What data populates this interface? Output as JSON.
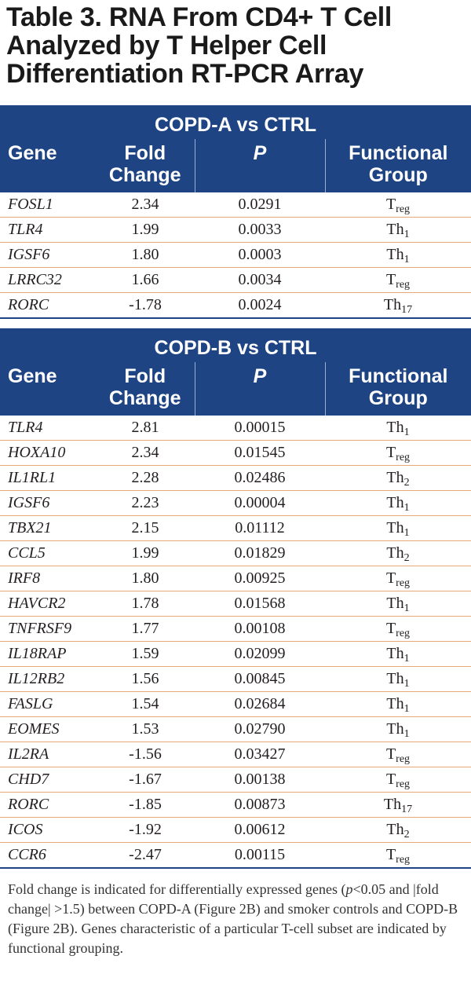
{
  "title": "Table 3. RNA From CD4+ T Cell Analyzed by T Helper Cell Differentiation RT-PCR Array",
  "columns": {
    "gene": "Gene",
    "fold_change": "Fold Change",
    "p": "P",
    "functional_group": "Functional Group"
  },
  "table_a": {
    "group_label": "COPD-A vs CTRL",
    "rows": [
      {
        "gene": "FOSL1",
        "fold": "2.34",
        "p": "0.0291",
        "grp_base": "T",
        "grp_sub": "reg"
      },
      {
        "gene": "TLR4",
        "fold": "1.99",
        "p": "0.0033",
        "grp_base": "Th",
        "grp_sub": "1"
      },
      {
        "gene": "IGSF6",
        "fold": "1.80",
        "p": "0.0003",
        "grp_base": "Th",
        "grp_sub": "1"
      },
      {
        "gene": "LRRC32",
        "fold": "1.66",
        "p": "0.0034",
        "grp_base": "T",
        "grp_sub": "reg"
      },
      {
        "gene": "RORC",
        "fold": "-1.78",
        "p": "0.0024",
        "grp_base": "Th",
        "grp_sub": "17"
      }
    ]
  },
  "table_b": {
    "group_label": "COPD-B vs CTRL",
    "rows": [
      {
        "gene": "TLR4",
        "fold": "2.81",
        "p": "0.00015",
        "grp_base": "Th",
        "grp_sub": "1"
      },
      {
        "gene": "HOXA10",
        "fold": "2.34",
        "p": "0.01545",
        "grp_base": "T",
        "grp_sub": "reg"
      },
      {
        "gene": "IL1RL1",
        "fold": "2.28",
        "p": "0.02486",
        "grp_base": "Th",
        "grp_sub": "2"
      },
      {
        "gene": "IGSF6",
        "fold": "2.23",
        "p": "0.00004",
        "grp_base": "Th",
        "grp_sub": "1"
      },
      {
        "gene": "TBX21",
        "fold": "2.15",
        "p": "0.01112",
        "grp_base": "Th",
        "grp_sub": "1"
      },
      {
        "gene": "CCL5",
        "fold": "1.99",
        "p": "0.01829",
        "grp_base": "Th",
        "grp_sub": "2"
      },
      {
        "gene": "IRF8",
        "fold": "1.80",
        "p": "0.00925",
        "grp_base": "T",
        "grp_sub": "reg"
      },
      {
        "gene": "HAVCR2",
        "fold": "1.78",
        "p": "0.01568",
        "grp_base": "Th",
        "grp_sub": "1"
      },
      {
        "gene": "TNFRSF9",
        "fold": "1.77",
        "p": "0.00108",
        "grp_base": "T",
        "grp_sub": "reg"
      },
      {
        "gene": "IL18RAP",
        "fold": "1.59",
        "p": "0.02099",
        "grp_base": "Th",
        "grp_sub": "1"
      },
      {
        "gene": "IL12RB2",
        "fold": "1.56",
        "p": "0.00845",
        "grp_base": "Th",
        "grp_sub": "1"
      },
      {
        "gene": "FASLG",
        "fold": "1.54",
        "p": "0.02684",
        "grp_base": "Th",
        "grp_sub": "1"
      },
      {
        "gene": "EOMES",
        "fold": "1.53",
        "p": "0.02790",
        "grp_base": "Th",
        "grp_sub": "1"
      },
      {
        "gene": "IL2RA",
        "fold": "-1.56",
        "p": "0.03427",
        "grp_base": "T",
        "grp_sub": "reg"
      },
      {
        "gene": "CHD7",
        "fold": "-1.67",
        "p": "0.00138",
        "grp_base": "T",
        "grp_sub": "reg"
      },
      {
        "gene": "RORC",
        "fold": "-1.85",
        "p": "0.00873",
        "grp_base": "Th",
        "grp_sub": "17"
      },
      {
        "gene": "ICOS",
        "fold": "-1.92",
        "p": "0.00612",
        "grp_base": "Th",
        "grp_sub": "2"
      },
      {
        "gene": "CCR6",
        "fold": "-2.47",
        "p": "0.00115",
        "grp_base": "T",
        "grp_sub": "reg"
      }
    ]
  },
  "footnote": {
    "part1": "Fold change is indicated for differentially expressed genes (",
    "p_symbol": "p",
    "part2": "<0.05 and |fold change| >1.5) between COPD-A (Figure 2B) and smoker controls and COPD-B (Figure 2B). Genes characteristic of a particular T-cell subset are indicated by functional grouping."
  },
  "colors": {
    "header_bg": "#1e4483",
    "row_divider": "#e8a777",
    "header_text": "#ffffff"
  }
}
